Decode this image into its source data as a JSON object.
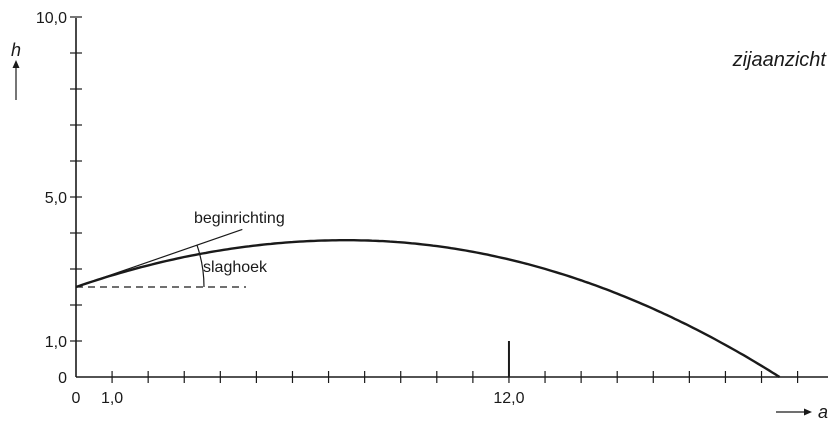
{
  "view_label": "zijaanzicht",
  "axes": {
    "y_var": "h",
    "x_var": "a",
    "y_ticks": {
      "values": [
        0,
        1,
        5,
        10
      ],
      "labels": [
        "0",
        "1,0",
        "5,0",
        "10,0"
      ]
    },
    "x_ticks": {
      "values": [
        0,
        1,
        12
      ],
      "labels": [
        "0",
        "1,0",
        "12,0"
      ]
    },
    "y_minor_step": 1,
    "x_minor_step": 1,
    "x_max": 20.8,
    "y_max": 10
  },
  "annotations": {
    "direction_label": "beginrichting",
    "angle_label": "slaghoek"
  },
  "trajectory": {
    "launch_height": 2.5,
    "apex_a": 7.5,
    "apex_h": 3.8,
    "landing_a": 19.5
  },
  "marker": {
    "a": 12,
    "h": 1
  },
  "colors": {
    "ink": "#1a1a1a",
    "background": "#ffffff"
  }
}
